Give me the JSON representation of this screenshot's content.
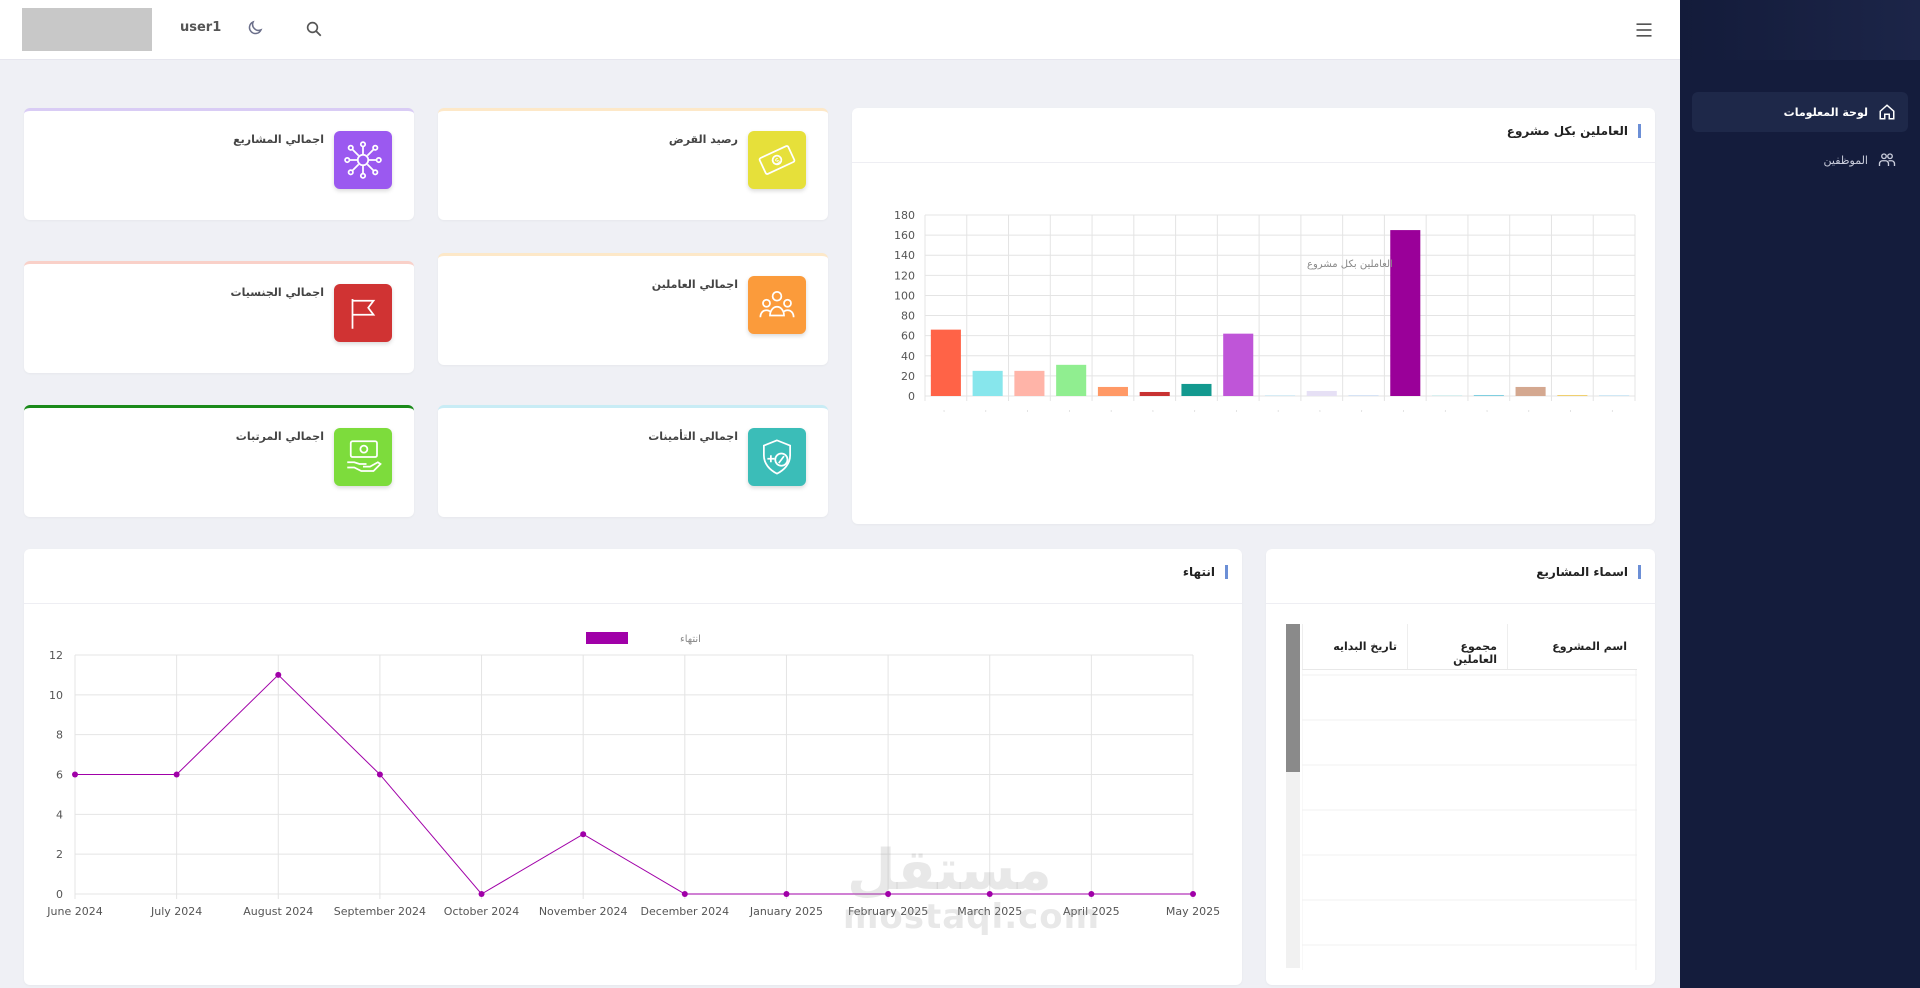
{
  "header": {
    "username": "user1"
  },
  "sidebar": {
    "items": [
      {
        "label": "لوحة المعلومات",
        "icon": "home-icon",
        "active": true
      },
      {
        "label": "الموظفين",
        "icon": "users-icon",
        "active": false
      }
    ]
  },
  "stats": [
    {
      "key": "loan",
      "title": "رصيد القرض",
      "color": "#e6e03a",
      "border": "#fde8c8",
      "icon": "money-bill-icon"
    },
    {
      "key": "projects",
      "title": "اجمالي المشاريع",
      "color": "#9b59f0",
      "border": "#d9ccf5",
      "icon": "network-icon"
    },
    {
      "key": "workers",
      "title": "اجمالي العاملين",
      "color": "#fb9b3b",
      "border": "#fde8c8",
      "icon": "team-icon"
    },
    {
      "key": "nationalities",
      "title": "اجمالي الجنسيات",
      "color": "#d03333",
      "border": "#f9d0c8",
      "icon": "flag-icon"
    },
    {
      "key": "insurance",
      "title": "اجمالي التأمينات",
      "color": "#3bbdb8",
      "border": "#c8ecf5",
      "icon": "shield-percent-icon"
    },
    {
      "key": "salaries",
      "title": "اجمالي المرتبات",
      "color": "#7ddc3c",
      "border": "#1a8a1a",
      "icon": "salary-hand-icon"
    }
  ],
  "workers_panel": {
    "title": "العاملين بكل مشروع"
  },
  "projects_panel": {
    "title": "اسماء المشاريع",
    "columns": [
      "اسم المشروع",
      "مجموع العاملين",
      "تاريخ البدايه"
    ]
  },
  "end_panel": {
    "title": "انتهاء"
  },
  "watermark": {
    "ar": "مستقل",
    "en": "mostaql.com"
  },
  "chart_data": [
    {
      "type": "bar",
      "title": "",
      "legend": "العاملين بكل مشروع",
      "legend_position": "top",
      "ylim": [
        0,
        180
      ],
      "yticks": [
        0,
        20,
        40,
        60,
        80,
        100,
        120,
        140,
        160,
        180
      ],
      "grid": true,
      "values": [
        66,
        25,
        25,
        31,
        9,
        4,
        12,
        62,
        0,
        5,
        0,
        165,
        0,
        1,
        9,
        1,
        0
      ],
      "colors": [
        "#ff6347",
        "#87e6ec",
        "#ffb4a8",
        "#90ee90",
        "#ff9966",
        "#c83232",
        "#13998f",
        "#bf55d8",
        "#d7ecf5",
        "#e6e0f5",
        "#d6e3f5",
        "#9a0099",
        "#d8f0f0",
        "#80cfe0",
        "#d4a890",
        "#f0d070",
        "#d0e8f5"
      ]
    },
    {
      "type": "line",
      "title": "",
      "legend": "انتهاء",
      "legend_position": "top",
      "color": "#a000a8",
      "ylim": [
        0,
        12
      ],
      "yticks": [
        0,
        2,
        4,
        6,
        8,
        10,
        12
      ],
      "grid": true,
      "x": [
        "June 2024",
        "July 2024",
        "August 2024",
        "September 2024",
        "October 2024",
        "November 2024",
        "December 2024",
        "January 2025",
        "February 2025",
        "March 2025",
        "April 2025",
        "May 2025"
      ],
      "values": [
        6,
        6,
        11,
        6,
        0,
        3,
        0,
        0,
        0,
        0,
        0,
        0
      ]
    }
  ]
}
